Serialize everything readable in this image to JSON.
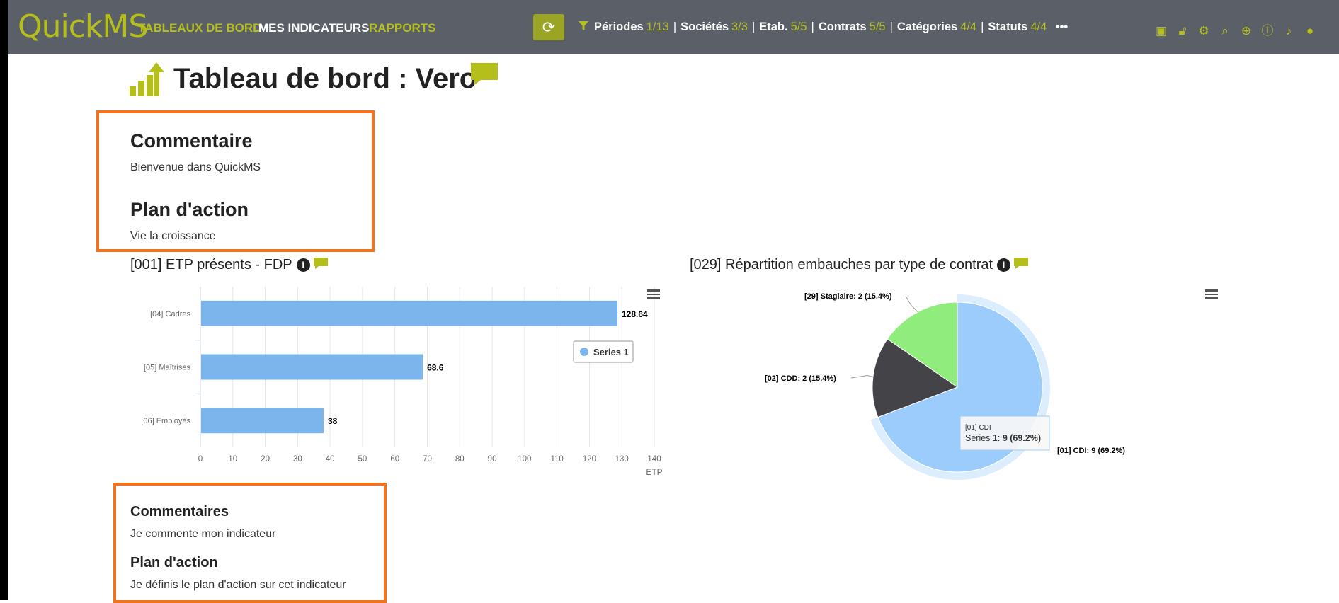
{
  "app": {
    "logo": "QuickMS",
    "nav": {
      "dashboards": "TABLEAUX DE BORD",
      "my_indicators": "MES INDICATEURS",
      "reports": "RAPPORTS"
    },
    "filters": [
      {
        "label": "Périodes",
        "count": "1/13"
      },
      {
        "label": "Sociétés",
        "count": "3/3"
      },
      {
        "label": "Etab.",
        "count": "5/5"
      },
      {
        "label": "Contrats",
        "count": "5/5"
      },
      {
        "label": "Catégories",
        "count": "4/4"
      },
      {
        "label": "Statuts",
        "count": "4/4"
      }
    ],
    "more": "•••",
    "toolbar_icons": [
      "excel-icon",
      "unlock-icon",
      "user-settings-icon",
      "search-icon",
      "plus-circle-icon",
      "info-icon",
      "bell-icon",
      "user-icon"
    ]
  },
  "page": {
    "title": "Tableau de bord : Vero",
    "comment_heading": "Commentaire",
    "comment_text": "Bienvenue dans QuickMS",
    "plan_heading": "Plan d'action",
    "plan_text": "Vie la croissance"
  },
  "card1": {
    "title": "[001] ETP présents - FDP",
    "comments_heading": "Commentaires",
    "comments_text": "Je commente mon indicateur",
    "plan_heading": "Plan d'action",
    "plan_text": "Je définis le plan d'action sur cet indicateur"
  },
  "card2": {
    "title": "[029] Répartition embauches par type de contrat",
    "tooltip_title": "[01] CDI",
    "tooltip_series": "Series 1: ",
    "tooltip_value": "9 (69.2%)"
  },
  "colors": {
    "accent": "#b5bf1b",
    "nav_bg": "#5b6068",
    "highlight_border": "#f0741d",
    "bar": "#7cb5ec",
    "pie_cdi": "#9cccfb",
    "pie_cdd": "#434348",
    "pie_stagiaire": "#90ed7d"
  },
  "chart_data": [
    {
      "type": "bar",
      "orientation": "horizontal",
      "categories": [
        "[04] Cadres",
        "[05] Maîtrises",
        "[06] Employés"
      ],
      "series": [
        {
          "name": "Series 1",
          "values": [
            128.64,
            68.6,
            38
          ]
        }
      ],
      "data_labels": [
        "128.64",
        "68.6",
        "38"
      ],
      "xlabel": "ETP",
      "xlim": [
        0,
        140
      ],
      "xticks": [
        "0",
        "10",
        "20",
        "30",
        "40",
        "50",
        "60",
        "70",
        "80",
        "90",
        "100",
        "110",
        "120",
        "130",
        "140"
      ],
      "legend": "right"
    },
    {
      "type": "pie",
      "series_name": "Series 1",
      "slices": [
        {
          "label": "[01] CDI: 9 (69.2%)",
          "value": 9
        },
        {
          "label": "[02] CDD: 2 (15.4%)",
          "value": 2
        },
        {
          "label": "[29] Stagiaire: 2 (15.4%)",
          "value": 2
        }
      ]
    }
  ]
}
